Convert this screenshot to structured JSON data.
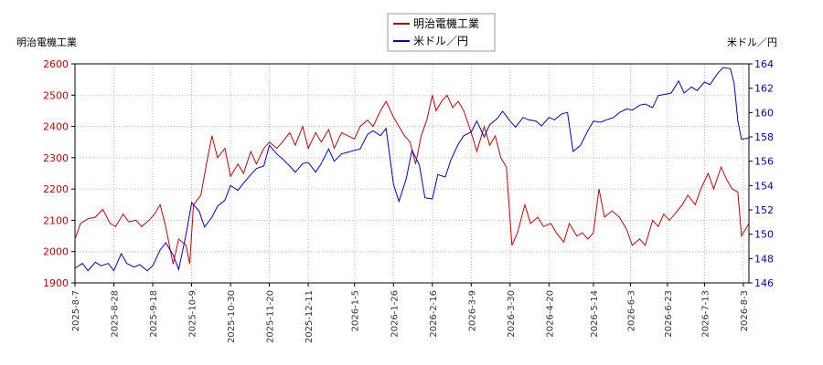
{
  "chart_data": {
    "type": "line",
    "left_axis_title": "明治電機工業",
    "right_axis_title": "米ドル／円",
    "left_ylim": [
      1900,
      2600
    ],
    "left_ticks": [
      1900,
      2000,
      2100,
      2200,
      2300,
      2400,
      2500,
      2600
    ],
    "right_ylim": [
      146,
      164
    ],
    "right_ticks": [
      146,
      148,
      150,
      152,
      154,
      156,
      158,
      160,
      162,
      164
    ],
    "x_range": [
      "2025-08-07",
      "2026-08-06"
    ],
    "x_ticks": [
      "2025-8-7",
      "2025-8-28",
      "2025-9-18",
      "2025-10-9",
      "2025-10-30",
      "2025-11-20",
      "2025-12-11",
      "2026-1-5",
      "2026-1-26",
      "2026-2-16",
      "2026-3-9",
      "2026-3-30",
      "2026-4-20",
      "2026-5-14",
      "2026-6-3",
      "2026-6-23",
      "2026-7-13",
      "2026-8-3"
    ],
    "grid": true,
    "legend_position": "top-center",
    "series": [
      {
        "name": "明治電機工業",
        "axis": "left",
        "color": "#cc0000",
        "points": [
          [
            "2025-08-07",
            2040
          ],
          [
            "2025-08-10",
            2090
          ],
          [
            "2025-08-14",
            2105
          ],
          [
            "2025-08-18",
            2110
          ],
          [
            "2025-08-22",
            2135
          ],
          [
            "2025-08-26",
            2090
          ],
          [
            "2025-08-29",
            2080
          ],
          [
            "2025-09-02",
            2120
          ],
          [
            "2025-09-05",
            2095
          ],
          [
            "2025-09-09",
            2100
          ],
          [
            "2025-09-12",
            2080
          ],
          [
            "2025-09-16",
            2100
          ],
          [
            "2025-09-19",
            2120
          ],
          [
            "2025-09-22",
            2150
          ],
          [
            "2025-09-25",
            2080
          ],
          [
            "2025-09-29",
            1960
          ],
          [
            "2025-10-02",
            2040
          ],
          [
            "2025-10-06",
            2020
          ],
          [
            "2025-10-08",
            1960
          ],
          [
            "2025-10-10",
            2150
          ],
          [
            "2025-10-14",
            2180
          ],
          [
            "2025-10-17",
            2280
          ],
          [
            "2025-10-20",
            2370
          ],
          [
            "2025-10-23",
            2300
          ],
          [
            "2025-10-27",
            2330
          ],
          [
            "2025-10-30",
            2240
          ],
          [
            "2025-11-03",
            2280
          ],
          [
            "2025-11-06",
            2250
          ],
          [
            "2025-11-10",
            2320
          ],
          [
            "2025-11-13",
            2280
          ],
          [
            "2025-11-17",
            2330
          ],
          [
            "2025-11-20",
            2350
          ],
          [
            "2025-11-24",
            2330
          ],
          [
            "2025-11-27",
            2350
          ],
          [
            "2025-12-01",
            2380
          ],
          [
            "2025-12-04",
            2340
          ],
          [
            "2025-12-08",
            2400
          ],
          [
            "2025-12-11",
            2330
          ],
          [
            "2025-12-15",
            2380
          ],
          [
            "2025-12-18",
            2350
          ],
          [
            "2025-12-22",
            2390
          ],
          [
            "2025-12-25",
            2330
          ],
          [
            "2025-12-29",
            2380
          ],
          [
            "2026-01-05",
            2360
          ],
          [
            "2026-01-08",
            2400
          ],
          [
            "2026-01-12",
            2420
          ],
          [
            "2026-01-15",
            2400
          ],
          [
            "2026-01-19",
            2450
          ],
          [
            "2026-01-22",
            2480
          ],
          [
            "2026-01-26",
            2430
          ],
          [
            "2026-01-29",
            2400
          ],
          [
            "2026-02-01",
            2370
          ],
          [
            "2026-02-04",
            2350
          ],
          [
            "2026-02-07",
            2280
          ],
          [
            "2026-02-10",
            2370
          ],
          [
            "2026-02-13",
            2420
          ],
          [
            "2026-02-16",
            2500
          ],
          [
            "2026-02-18",
            2450
          ],
          [
            "2026-02-21",
            2480
          ],
          [
            "2026-02-24",
            2500
          ],
          [
            "2026-02-27",
            2460
          ],
          [
            "2026-03-02",
            2480
          ],
          [
            "2026-03-05",
            2450
          ],
          [
            "2026-03-09",
            2380
          ],
          [
            "2026-03-12",
            2320
          ],
          [
            "2026-03-16",
            2400
          ],
          [
            "2026-03-19",
            2340
          ],
          [
            "2026-03-22",
            2370
          ],
          [
            "2026-03-25",
            2300
          ],
          [
            "2026-03-28",
            2270
          ],
          [
            "2026-03-31",
            2020
          ],
          [
            "2026-04-03",
            2060
          ],
          [
            "2026-04-07",
            2150
          ],
          [
            "2026-04-10",
            2090
          ],
          [
            "2026-04-14",
            2110
          ],
          [
            "2026-04-17",
            2080
          ],
          [
            "2026-04-21",
            2090
          ],
          [
            "2026-04-24",
            2060
          ],
          [
            "2026-04-28",
            2030
          ],
          [
            "2026-05-01",
            2090
          ],
          [
            "2026-05-05",
            2050
          ],
          [
            "2026-05-08",
            2060
          ],
          [
            "2026-05-11",
            2040
          ],
          [
            "2026-05-14",
            2060
          ],
          [
            "2026-05-17",
            2200
          ],
          [
            "2026-05-20",
            2110
          ],
          [
            "2026-05-24",
            2130
          ],
          [
            "2026-05-28",
            2110
          ],
          [
            "2026-06-01",
            2070
          ],
          [
            "2026-06-04",
            2020
          ],
          [
            "2026-06-08",
            2040
          ],
          [
            "2026-06-11",
            2020
          ],
          [
            "2026-06-15",
            2100
          ],
          [
            "2026-06-18",
            2080
          ],
          [
            "2026-06-21",
            2120
          ],
          [
            "2026-06-24",
            2100
          ],
          [
            "2026-06-27",
            2120
          ],
          [
            "2026-07-01",
            2150
          ],
          [
            "2026-07-04",
            2180
          ],
          [
            "2026-07-08",
            2150
          ],
          [
            "2026-07-11",
            2200
          ],
          [
            "2026-07-15",
            2250
          ],
          [
            "2026-07-18",
            2200
          ],
          [
            "2026-07-22",
            2270
          ],
          [
            "2026-07-25",
            2230
          ],
          [
            "2026-07-28",
            2200
          ],
          [
            "2026-07-31",
            2190
          ],
          [
            "2026-08-02",
            2050
          ],
          [
            "2026-08-04",
            2070
          ],
          [
            "2026-08-06",
            2090
          ]
        ]
      },
      {
        "name": "米ドル／円",
        "axis": "right",
        "color": "#0000cc",
        "points": [
          [
            "2025-08-07",
            147.2
          ],
          [
            "2025-08-11",
            147.6
          ],
          [
            "2025-08-14",
            147.0
          ],
          [
            "2025-08-18",
            147.7
          ],
          [
            "2025-08-21",
            147.4
          ],
          [
            "2025-08-25",
            147.6
          ],
          [
            "2025-08-28",
            147.0
          ],
          [
            "2025-09-01",
            148.4
          ],
          [
            "2025-09-04",
            147.6
          ],
          [
            "2025-09-08",
            147.3
          ],
          [
            "2025-09-11",
            147.5
          ],
          [
            "2025-09-15",
            147.0
          ],
          [
            "2025-09-18",
            147.4
          ],
          [
            "2025-09-22",
            148.7
          ],
          [
            "2025-09-25",
            149.3
          ],
          [
            "2025-09-29",
            148.3
          ],
          [
            "2025-10-02",
            147.1
          ],
          [
            "2025-10-06",
            150.0
          ],
          [
            "2025-10-09",
            152.6
          ],
          [
            "2025-10-13",
            151.9
          ],
          [
            "2025-10-16",
            150.6
          ],
          [
            "2025-10-20",
            151.4
          ],
          [
            "2025-10-23",
            152.3
          ],
          [
            "2025-10-27",
            152.8
          ],
          [
            "2025-10-30",
            154.0
          ],
          [
            "2025-11-03",
            153.6
          ],
          [
            "2025-11-06",
            154.2
          ],
          [
            "2025-11-10",
            154.9
          ],
          [
            "2025-11-13",
            155.4
          ],
          [
            "2025-11-17",
            155.6
          ],
          [
            "2025-11-20",
            157.3
          ],
          [
            "2025-11-24",
            156.6
          ],
          [
            "2025-11-27",
            156.2
          ],
          [
            "2025-12-01",
            155.6
          ],
          [
            "2025-12-04",
            155.1
          ],
          [
            "2025-12-08",
            155.8
          ],
          [
            "2025-12-11",
            155.9
          ],
          [
            "2025-12-15",
            155.1
          ],
          [
            "2025-12-18",
            155.8
          ],
          [
            "2025-12-22",
            157.0
          ],
          [
            "2025-12-25",
            156.0
          ],
          [
            "2025-12-29",
            156.6
          ],
          [
            "2026-01-05",
            156.9
          ],
          [
            "2026-01-08",
            157.0
          ],
          [
            "2026-01-12",
            158.2
          ],
          [
            "2026-01-15",
            158.5
          ],
          [
            "2026-01-19",
            158.1
          ],
          [
            "2026-01-22",
            158.7
          ],
          [
            "2026-01-26",
            154.1
          ],
          [
            "2026-01-29",
            152.7
          ],
          [
            "2026-02-02",
            154.6
          ],
          [
            "2026-02-05",
            156.9
          ],
          [
            "2026-02-09",
            155.7
          ],
          [
            "2026-02-12",
            153.0
          ],
          [
            "2026-02-16",
            152.9
          ],
          [
            "2026-02-19",
            154.9
          ],
          [
            "2026-02-23",
            154.7
          ],
          [
            "2026-02-26",
            156.1
          ],
          [
            "2026-03-02",
            157.4
          ],
          [
            "2026-03-05",
            158.1
          ],
          [
            "2026-03-09",
            158.4
          ],
          [
            "2026-03-12",
            159.3
          ],
          [
            "2026-03-16",
            158.0
          ],
          [
            "2026-03-19",
            159.0
          ],
          [
            "2026-03-23",
            159.5
          ],
          [
            "2026-03-26",
            160.1
          ],
          [
            "2026-03-30",
            159.3
          ],
          [
            "2026-04-02",
            158.8
          ],
          [
            "2026-04-06",
            159.6
          ],
          [
            "2026-04-09",
            159.4
          ],
          [
            "2026-04-13",
            159.3
          ],
          [
            "2026-04-16",
            158.9
          ],
          [
            "2026-04-20",
            159.6
          ],
          [
            "2026-04-23",
            159.4
          ],
          [
            "2026-04-27",
            159.9
          ],
          [
            "2026-04-30",
            160.0
          ],
          [
            "2026-05-03",
            156.8
          ],
          [
            "2026-05-07",
            157.3
          ],
          [
            "2026-05-11",
            158.5
          ],
          [
            "2026-05-14",
            159.3
          ],
          [
            "2026-05-18",
            159.2
          ],
          [
            "2026-05-21",
            159.4
          ],
          [
            "2026-05-25",
            159.6
          ],
          [
            "2026-05-28",
            160.0
          ],
          [
            "2026-06-01",
            160.3
          ],
          [
            "2026-06-04",
            160.2
          ],
          [
            "2026-06-08",
            160.6
          ],
          [
            "2026-06-11",
            160.7
          ],
          [
            "2026-06-15",
            160.4
          ],
          [
            "2026-06-18",
            161.4
          ],
          [
            "2026-06-22",
            161.5
          ],
          [
            "2026-06-25",
            161.6
          ],
          [
            "2026-06-29",
            162.6
          ],
          [
            "2026-07-02",
            161.6
          ],
          [
            "2026-07-06",
            162.1
          ],
          [
            "2026-07-09",
            161.8
          ],
          [
            "2026-07-13",
            162.5
          ],
          [
            "2026-07-16",
            162.3
          ],
          [
            "2026-07-20",
            163.2
          ],
          [
            "2026-07-23",
            163.7
          ],
          [
            "2026-07-27",
            163.6
          ],
          [
            "2026-07-29",
            162.4
          ],
          [
            "2026-07-31",
            159.3
          ],
          [
            "2026-08-02",
            157.8
          ],
          [
            "2026-08-06",
            157.9
          ]
        ]
      }
    ]
  }
}
